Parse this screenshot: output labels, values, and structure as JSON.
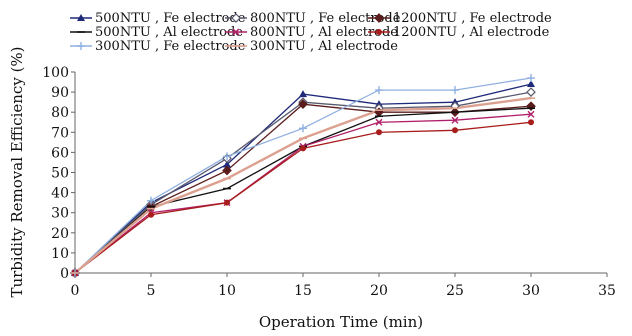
{
  "chart_data": {
    "type": "line",
    "xlabel": "Operation Time (min)",
    "ylabel": "Turbidity Removal Efficiency (%)",
    "xlim": [
      0,
      35
    ],
    "ylim": [
      0,
      100
    ],
    "x_ticks": [
      0,
      5,
      10,
      15,
      20,
      25,
      30,
      35
    ],
    "y_ticks": [
      0,
      10,
      20,
      30,
      40,
      50,
      60,
      70,
      80,
      90,
      100
    ],
    "grid": false,
    "legend_position": "top",
    "x": [
      0,
      5,
      10,
      15,
      20,
      25,
      30
    ],
    "series": [
      {
        "name": "500NTU , Fe electrode",
        "color": "#1f2a7a",
        "marker": "triangle",
        "values": [
          0,
          35,
          54,
          89,
          84,
          85,
          94
        ]
      },
      {
        "name": "800NTU , Fe electrode",
        "color": "#5a5a6e",
        "marker": "diamond-open",
        "values": [
          0,
          34,
          57,
          85,
          82,
          83,
          90
        ]
      },
      {
        "name": "1200NTU , Fe electrode",
        "color": "#5a1c1c",
        "marker": "diamond",
        "values": [
          0,
          33,
          51,
          84,
          80,
          80,
          83
        ]
      },
      {
        "name": "500NTU , Al electrode",
        "color": "#111111",
        "marker": "dash",
        "values": [
          0,
          33,
          42,
          63,
          78,
          80,
          82
        ]
      },
      {
        "name": "800NTU , Al electrode",
        "color": "#b0206a",
        "marker": "x",
        "values": [
          0,
          30,
          35,
          63,
          75,
          76,
          79
        ]
      },
      {
        "name": "1200NTU , Al electrode",
        "color": "#a81c1c",
        "marker": "circle",
        "values": [
          0,
          29,
          35,
          62,
          70,
          71,
          75
        ]
      },
      {
        "name": "300NTU , Fe electrode",
        "color": "#8fb0e0",
        "marker": "plus",
        "values": [
          0,
          36,
          58,
          72,
          91,
          91,
          97
        ]
      },
      {
        "name": "300NTU , Al electrode",
        "color": "#dba08f",
        "marker": "dash",
        "values": [
          0,
          32,
          47,
          67,
          81,
          82,
          87
        ]
      }
    ]
  }
}
